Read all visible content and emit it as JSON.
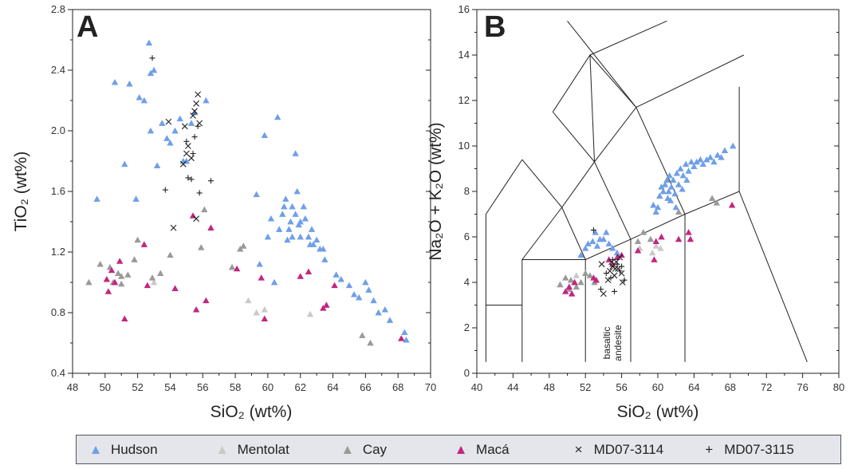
{
  "panels": {
    "A": {
      "letter": "A"
    },
    "B": {
      "letter": "B"
    }
  },
  "legend": [
    {
      "name": "Hudson",
      "symbol": "triangle",
      "color": "#6f9fe8"
    },
    {
      "name": "Mentolat",
      "symbol": "triangle",
      "color": "#c9c9c9"
    },
    {
      "name": "Cay",
      "symbol": "triangle",
      "color": "#9a9a9a"
    },
    {
      "name": "Macá",
      "symbol": "triangle",
      "color": "#c2267f"
    },
    {
      "name": "MD07-3114",
      "symbol": "x",
      "color": "#222222"
    },
    {
      "name": "MD07-3115",
      "symbol": "plus",
      "color": "#222222"
    }
  ],
  "chart_data": [
    {
      "type": "scatter",
      "panel": "A",
      "xlabel": "SiO₂ (wt%)",
      "ylabel": "TiO₂ (wt%)",
      "xlim": [
        48,
        70
      ],
      "ylim": [
        0.4,
        2.8
      ],
      "xticks": [
        "48",
        "50",
        "52",
        "54",
        "56",
        "58",
        "60",
        "62",
        "64",
        "66",
        "68",
        "70"
      ],
      "yticks": [
        "0.4",
        "0.8",
        "1.2",
        "1.6",
        "2.0",
        "2.4",
        "2.8"
      ],
      "series": [
        {
          "name": "Hudson",
          "points": [
            [
              49.5,
              1.55
            ],
            [
              50.6,
              2.32
            ],
            [
              51.2,
              1.78
            ],
            [
              51.5,
              2.31
            ],
            [
              51.9,
              1.55
            ],
            [
              52.1,
              2.22
            ],
            [
              52.4,
              2.2
            ],
            [
              52.7,
              2.58
            ],
            [
              52.8,
              2.38
            ],
            [
              53.0,
              2.4
            ],
            [
              52.8,
              2.0
            ],
            [
              53.2,
              1.77
            ],
            [
              53.5,
              2.05
            ],
            [
              53.8,
              1.95
            ],
            [
              54.0,
              1.92
            ],
            [
              54.3,
              2.0
            ],
            [
              54.6,
              2.08
            ],
            [
              54.8,
              1.8
            ],
            [
              55.0,
              1.8
            ],
            [
              55.3,
              2.05
            ],
            [
              55.5,
              2.12
            ],
            [
              56.2,
              2.2
            ],
            [
              59.3,
              1.58
            ],
            [
              59.5,
              1.12
            ],
            [
              59.8,
              1.97
            ],
            [
              60.0,
              1.3
            ],
            [
              60.4,
              1.0
            ],
            [
              60.6,
              2.09
            ],
            [
              60.9,
              1.45
            ],
            [
              61.0,
              1.5
            ],
            [
              61.1,
              1.55
            ],
            [
              61.3,
              1.35
            ],
            [
              61.4,
              1.4
            ],
            [
              61.5,
              1.5
            ],
            [
              61.5,
              1.3
            ],
            [
              61.7,
              1.85
            ],
            [
              61.7,
              1.45
            ],
            [
              61.8,
              1.6
            ],
            [
              61.9,
              1.38
            ],
            [
              62.0,
              1.4
            ],
            [
              62.0,
              1.3
            ],
            [
              62.2,
              1.5
            ],
            [
              62.3,
              1.42
            ],
            [
              62.5,
              1.3
            ],
            [
              62.7,
              1.35
            ],
            [
              62.8,
              1.25
            ],
            [
              63.0,
              1.28
            ],
            [
              63.2,
              1.22
            ],
            [
              63.4,
              1.22
            ],
            [
              63.5,
              1.15
            ],
            [
              64.2,
              1.05
            ],
            [
              64.5,
              1.02
            ],
            [
              65.0,
              0.98
            ],
            [
              65.3,
              0.92
            ],
            [
              65.6,
              0.9
            ],
            [
              66.0,
              1.0
            ],
            [
              66.2,
              0.95
            ],
            [
              66.5,
              0.88
            ],
            [
              66.8,
              0.8
            ],
            [
              67.2,
              0.82
            ],
            [
              67.5,
              0.75
            ],
            [
              68.4,
              0.67
            ],
            [
              68.5,
              0.62
            ],
            [
              60.2,
              1.42
            ],
            [
              60.7,
              1.35
            ],
            [
              61.2,
              1.28
            ],
            [
              62.6,
              1.25
            ]
          ]
        },
        {
          "name": "Mentolat",
          "points": [
            [
              58.8,
              0.88
            ],
            [
              59.3,
              0.8
            ],
            [
              59.8,
              0.82
            ],
            [
              62.6,
              0.79
            ],
            [
              53.0,
              1.0
            ]
          ]
        },
        {
          "name": "Cay",
          "points": [
            [
              49.0,
              1.0
            ],
            [
              49.7,
              1.12
            ],
            [
              50.3,
              1.1
            ],
            [
              50.8,
              1.06
            ],
            [
              51.0,
              0.99
            ],
            [
              51.4,
              1.05
            ],
            [
              51.8,
              1.15
            ],
            [
              52.0,
              1.28
            ],
            [
              52.9,
              1.03
            ],
            [
              53.4,
              1.06
            ],
            [
              54.0,
              1.18
            ],
            [
              55.9,
              1.23
            ],
            [
              56.1,
              1.48
            ],
            [
              57.8,
              1.1
            ],
            [
              58.3,
              1.22
            ],
            [
              58.5,
              1.24
            ],
            [
              65.8,
              0.65
            ],
            [
              66.3,
              0.6
            ],
            [
              51.0,
              1.04
            ],
            [
              50.5,
              1.0
            ]
          ]
        },
        {
          "name": "Macá",
          "points": [
            [
              50.1,
              1.02
            ],
            [
              50.2,
              0.94
            ],
            [
              50.4,
              1.08
            ],
            [
              50.6,
              1.0
            ],
            [
              50.9,
              1.14
            ],
            [
              51.2,
              0.76
            ],
            [
              52.4,
              1.25
            ],
            [
              52.6,
              0.98
            ],
            [
              54.3,
              0.96
            ],
            [
              55.4,
              1.44
            ],
            [
              55.6,
              0.82
            ],
            [
              56.2,
              0.88
            ],
            [
              56.5,
              1.36
            ],
            [
              58.1,
              1.09
            ],
            [
              59.6,
              1.03
            ],
            [
              59.8,
              0.76
            ],
            [
              62.0,
              1.04
            ],
            [
              62.5,
              1.07
            ],
            [
              63.4,
              0.83
            ],
            [
              63.6,
              0.85
            ],
            [
              64.1,
              0.98
            ],
            [
              68.2,
              0.63
            ]
          ]
        },
        {
          "name": "MD07-3114",
          "points": [
            [
              53.9,
              2.06
            ],
            [
              54.2,
              1.36
            ],
            [
              54.8,
              1.78
            ],
            [
              54.9,
              2.03
            ],
            [
              55.0,
              1.85
            ],
            [
              55.3,
              1.82
            ],
            [
              55.4,
              2.1
            ],
            [
              55.5,
              2.13
            ],
            [
              55.6,
              2.18
            ],
            [
              55.7,
              2.24
            ],
            [
              55.8,
              2.05
            ],
            [
              55.6,
              1.42
            ],
            [
              55.1,
              1.9
            ]
          ]
        },
        {
          "name": "MD07-3115",
          "points": [
            [
              52.9,
              2.48
            ],
            [
              53.7,
              1.61
            ],
            [
              55.0,
              1.93
            ],
            [
              55.1,
              1.69
            ],
            [
              55.3,
              1.68
            ],
            [
              55.5,
              1.96
            ],
            [
              55.7,
              2.03
            ],
            [
              55.8,
              1.59
            ],
            [
              56.5,
              1.67
            ],
            [
              55.4,
              1.85
            ]
          ]
        }
      ]
    },
    {
      "type": "scatter",
      "panel": "B",
      "xlabel": "SiO₂ (wt%)",
      "ylabel": "Na₂O + K₂O (wt%)",
      "xlim": [
        40,
        80
      ],
      "ylim": [
        0,
        16
      ],
      "xticks": [
        "40",
        "44",
        "48",
        "52",
        "56",
        "60",
        "64",
        "68",
        "72",
        "76",
        "80"
      ],
      "yticks": [
        "0",
        "2",
        "4",
        "6",
        "8",
        "10",
        "12",
        "14",
        "16"
      ],
      "field_labels": [
        "basaltic",
        "andesite"
      ],
      "series": [
        {
          "name": "Hudson",
          "points": [
            [
              51.5,
              5.2
            ],
            [
              52.0,
              5.5
            ],
            [
              52.3,
              5.7
            ],
            [
              52.8,
              5.8
            ],
            [
              53.1,
              6.2
            ],
            [
              53.3,
              5.6
            ],
            [
              53.6,
              5.9
            ],
            [
              54.0,
              5.9
            ],
            [
              54.3,
              6.2
            ],
            [
              54.6,
              5.7
            ],
            [
              55.0,
              5.5
            ],
            [
              55.5,
              5.3
            ],
            [
              59.5,
              7.4
            ],
            [
              59.8,
              7.1
            ],
            [
              60.2,
              7.8
            ],
            [
              60.4,
              8.2
            ],
            [
              60.6,
              8.0
            ],
            [
              60.8,
              8.3
            ],
            [
              61.0,
              8.5
            ],
            [
              61.2,
              8.0
            ],
            [
              61.3,
              8.7
            ],
            [
              61.5,
              8.2
            ],
            [
              61.7,
              8.5
            ],
            [
              61.9,
              7.9
            ],
            [
              62.1,
              8.8
            ],
            [
              62.3,
              8.3
            ],
            [
              62.5,
              9.0
            ],
            [
              62.8,
              8.7
            ],
            [
              63.1,
              9.2
            ],
            [
              63.4,
              8.9
            ],
            [
              63.7,
              9.3
            ],
            [
              64.0,
              9.1
            ],
            [
              64.3,
              9.3
            ],
            [
              64.7,
              9.4
            ],
            [
              65.0,
              9.2
            ],
            [
              65.4,
              9.4
            ],
            [
              65.8,
              9.5
            ],
            [
              66.2,
              9.3
            ],
            [
              66.6,
              9.6
            ],
            [
              67.0,
              9.5
            ],
            [
              67.4,
              9.8
            ],
            [
              68.3,
              10.0
            ],
            [
              60.0,
              7.3
            ],
            [
              61.4,
              7.6
            ],
            [
              62.0,
              7.3
            ],
            [
              63.2,
              8.5
            ],
            [
              61.1,
              7.7
            ],
            [
              62.7,
              8.1
            ]
          ]
        },
        {
          "name": "Mentolat",
          "points": [
            [
              59.4,
              5.3
            ],
            [
              59.8,
              5.6
            ],
            [
              58.0,
              5.5
            ],
            [
              60.3,
              5.5
            ],
            [
              51.0,
              4.3
            ]
          ]
        },
        {
          "name": "Cay",
          "points": [
            [
              49.2,
              3.9
            ],
            [
              49.8,
              4.2
            ],
            [
              50.4,
              4.1
            ],
            [
              51.0,
              3.8
            ],
            [
              51.5,
              4.0
            ],
            [
              52.0,
              4.4
            ],
            [
              52.5,
              4.3
            ],
            [
              53.0,
              4.0
            ],
            [
              57.8,
              5.8
            ],
            [
              58.4,
              6.2
            ],
            [
              59.2,
              5.9
            ],
            [
              66.0,
              7.7
            ],
            [
              66.5,
              7.5
            ],
            [
              62.3,
              7.1
            ],
            [
              50.2,
              3.7
            ],
            [
              50.8,
              4.0
            ]
          ]
        },
        {
          "name": "Macá",
          "points": [
            [
              49.8,
              3.6
            ],
            [
              50.2,
              3.8
            ],
            [
              50.5,
              3.5
            ],
            [
              50.8,
              4.0
            ],
            [
              52.9,
              4.2
            ],
            [
              53.2,
              4.1
            ],
            [
              54.6,
              5.0
            ],
            [
              55.0,
              4.8
            ],
            [
              55.5,
              5.1
            ],
            [
              56.0,
              5.2
            ],
            [
              57.8,
              5.4
            ],
            [
              59.6,
              5.0
            ],
            [
              59.8,
              5.8
            ],
            [
              62.3,
              5.9
            ],
            [
              63.4,
              6.2
            ],
            [
              63.6,
              5.9
            ],
            [
              68.2,
              7.4
            ],
            [
              60.4,
              6.0
            ]
          ]
        },
        {
          "name": "MD07-3114",
          "points": [
            [
              53.8,
              4.8
            ],
            [
              54.0,
              3.5
            ],
            [
              54.5,
              4.1
            ],
            [
              54.7,
              4.5
            ],
            [
              55.0,
              4.7
            ],
            [
              55.2,
              4.3
            ],
            [
              55.4,
              4.9
            ],
            [
              55.6,
              4.6
            ],
            [
              55.8,
              5.1
            ],
            [
              56.0,
              4.4
            ],
            [
              56.1,
              4.0
            ],
            [
              54.9,
              4.9
            ],
            [
              55.3,
              4.6
            ]
          ]
        },
        {
          "name": "MD07-3115",
          "points": [
            [
              52.9,
              6.3
            ],
            [
              53.7,
              3.7
            ],
            [
              54.3,
              4.4
            ],
            [
              54.8,
              4.2
            ],
            [
              55.2,
              3.6
            ],
            [
              55.5,
              4.8
            ],
            [
              55.8,
              4.5
            ],
            [
              56.3,
              4.1
            ],
            [
              55.0,
              5.0
            ],
            [
              56.0,
              4.7
            ]
          ]
        }
      ]
    }
  ]
}
